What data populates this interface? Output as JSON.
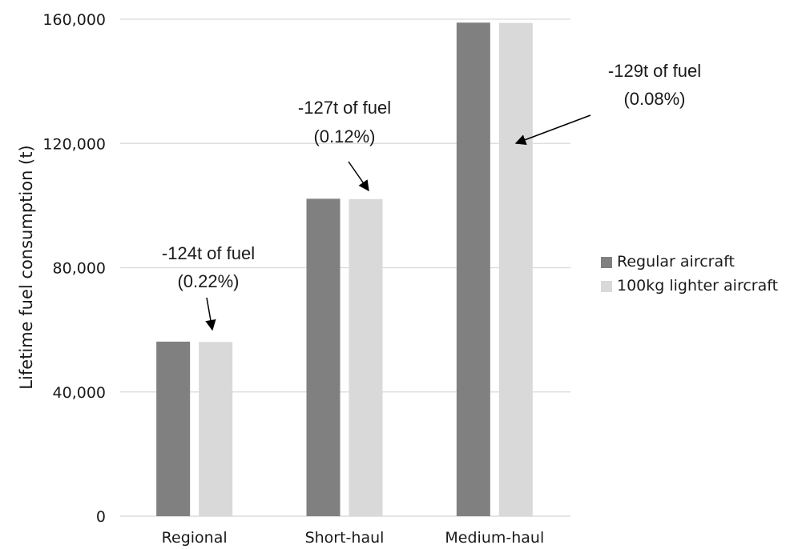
{
  "chart_data": {
    "type": "bar",
    "title": "",
    "xlabel": "",
    "ylabel": "Lifetime fuel consumption (t)",
    "ylim": [
      0,
      160000
    ],
    "yticks": [
      0,
      40000,
      80000,
      120000,
      160000
    ],
    "ytick_labels": [
      "0",
      "40,000",
      "80,000",
      "120,000",
      "160,000"
    ],
    "categories": [
      "Regional",
      "Short-haul",
      "Medium-haul"
    ],
    "grid": true,
    "legend_position": "right",
    "series": [
      {
        "name": "Regular aircraft",
        "color": "#808080",
        "values": [
          56200,
          102200,
          158900
        ]
      },
      {
        "name": "100kg lighter aircraft",
        "color": "#d9d9d9",
        "values": [
          56100,
          102100,
          158800
        ]
      }
    ],
    "annotations": [
      {
        "category": "Regional",
        "line1": "-124t of fuel",
        "line2": "(0.22%)"
      },
      {
        "category": "Short-haul",
        "line1": "-127t of fuel",
        "line2": "(0.12%)"
      },
      {
        "category": "Medium-haul",
        "line1": "-129t of fuel",
        "line2": "(0.08%)"
      }
    ]
  }
}
